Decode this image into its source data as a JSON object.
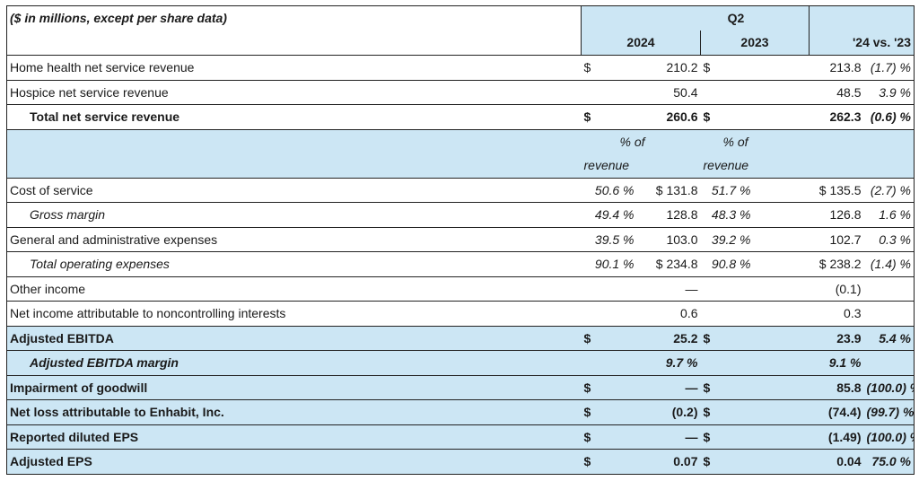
{
  "header": {
    "caption": "($ in millions, except per share data)",
    "period": "Q2",
    "year_2024": "2024",
    "year_2023": "2023",
    "change_col": "'24 vs. '23"
  },
  "subheader": {
    "pct_of_line1": "% of",
    "pct_of_line2": "revenue"
  },
  "rows": [
    {
      "label": "Home health net service revenue",
      "d1": "$",
      "p24": "",
      "v24": "210.2",
      "d2": "$",
      "p23": "",
      "v23": "213.8",
      "chg": "(1.7) %"
    },
    {
      "label": "Hospice net service revenue",
      "d1": "",
      "p24": "",
      "v24": "50.4",
      "d2": "",
      "p23": "",
      "v23": "48.5",
      "chg": "3.9 %"
    },
    {
      "label": "Total net service revenue",
      "d1": "$",
      "p24": "",
      "v24": "260.6",
      "d2": "$",
      "p23": "",
      "v23": "262.3",
      "chg": "(0.6) %"
    },
    {
      "label": "Cost of service",
      "d1": "",
      "p24": "50.6 %",
      "v24": "$ 131.8",
      "d2": "",
      "p23": "51.7 %",
      "v23": "$ 135.5",
      "chg": "(2.7) %"
    },
    {
      "label": "Gross margin",
      "d1": "",
      "p24": "49.4 %",
      "v24": "128.8",
      "d2": "",
      "p23": "48.3 %",
      "v23": "126.8",
      "chg": "1.6 %"
    },
    {
      "label": "General and administrative expenses",
      "d1": "",
      "p24": "39.5 %",
      "v24": "103.0",
      "d2": "",
      "p23": "39.2 %",
      "v23": "102.7",
      "chg": "0.3 %"
    },
    {
      "label": "Total operating expenses",
      "d1": "",
      "p24": "90.1 %",
      "v24": "$ 234.8",
      "d2": "",
      "p23": "90.8 %",
      "v23": "$ 238.2",
      "chg": "(1.4) %"
    },
    {
      "label": "Other income",
      "d1": "",
      "p24": "",
      "v24": "—",
      "d2": "",
      "p23": "",
      "v23": "(0.1)",
      "chg": ""
    },
    {
      "label": "Net income attributable to noncontrolling interests",
      "d1": "",
      "p24": "",
      "v24": "0.6",
      "d2": "",
      "p23": "",
      "v23": "0.3",
      "chg": ""
    },
    {
      "label": "Adjusted EBITDA",
      "d1": "$",
      "p24": "",
      "v24": "25.2",
      "d2": "$",
      "p23": "",
      "v23": "23.9",
      "chg": "5.4 %"
    },
    {
      "label": "Adjusted EBITDA margin",
      "d1": "",
      "p24": "",
      "v24": "9.7 %",
      "d2": "",
      "p23": "",
      "v23": "9.1 %",
      "chg": ""
    },
    {
      "label": "Impairment of goodwill",
      "d1": "$",
      "p24": "",
      "v24": "—",
      "d2": "$",
      "p23": "",
      "v23": "85.8",
      "chg": "(100.0) %"
    },
    {
      "label": "Net loss attributable to Enhabit, Inc.",
      "d1": "$",
      "p24": "",
      "v24": "(0.2)",
      "d2": "$",
      "p23": "",
      "v23": "(74.4)",
      "chg": "(99.7) %"
    },
    {
      "label": "Reported diluted EPS",
      "d1": "$",
      "p24": "",
      "v24": "—",
      "d2": "$",
      "p23": "",
      "v23": "(1.49)",
      "chg": "(100.0) %"
    },
    {
      "label": "Adjusted EPS",
      "d1": "$",
      "p24": "",
      "v24": "0.07",
      "d2": "$",
      "p23": "",
      "v23": "0.04",
      "chg": "75.0 %"
    }
  ]
}
